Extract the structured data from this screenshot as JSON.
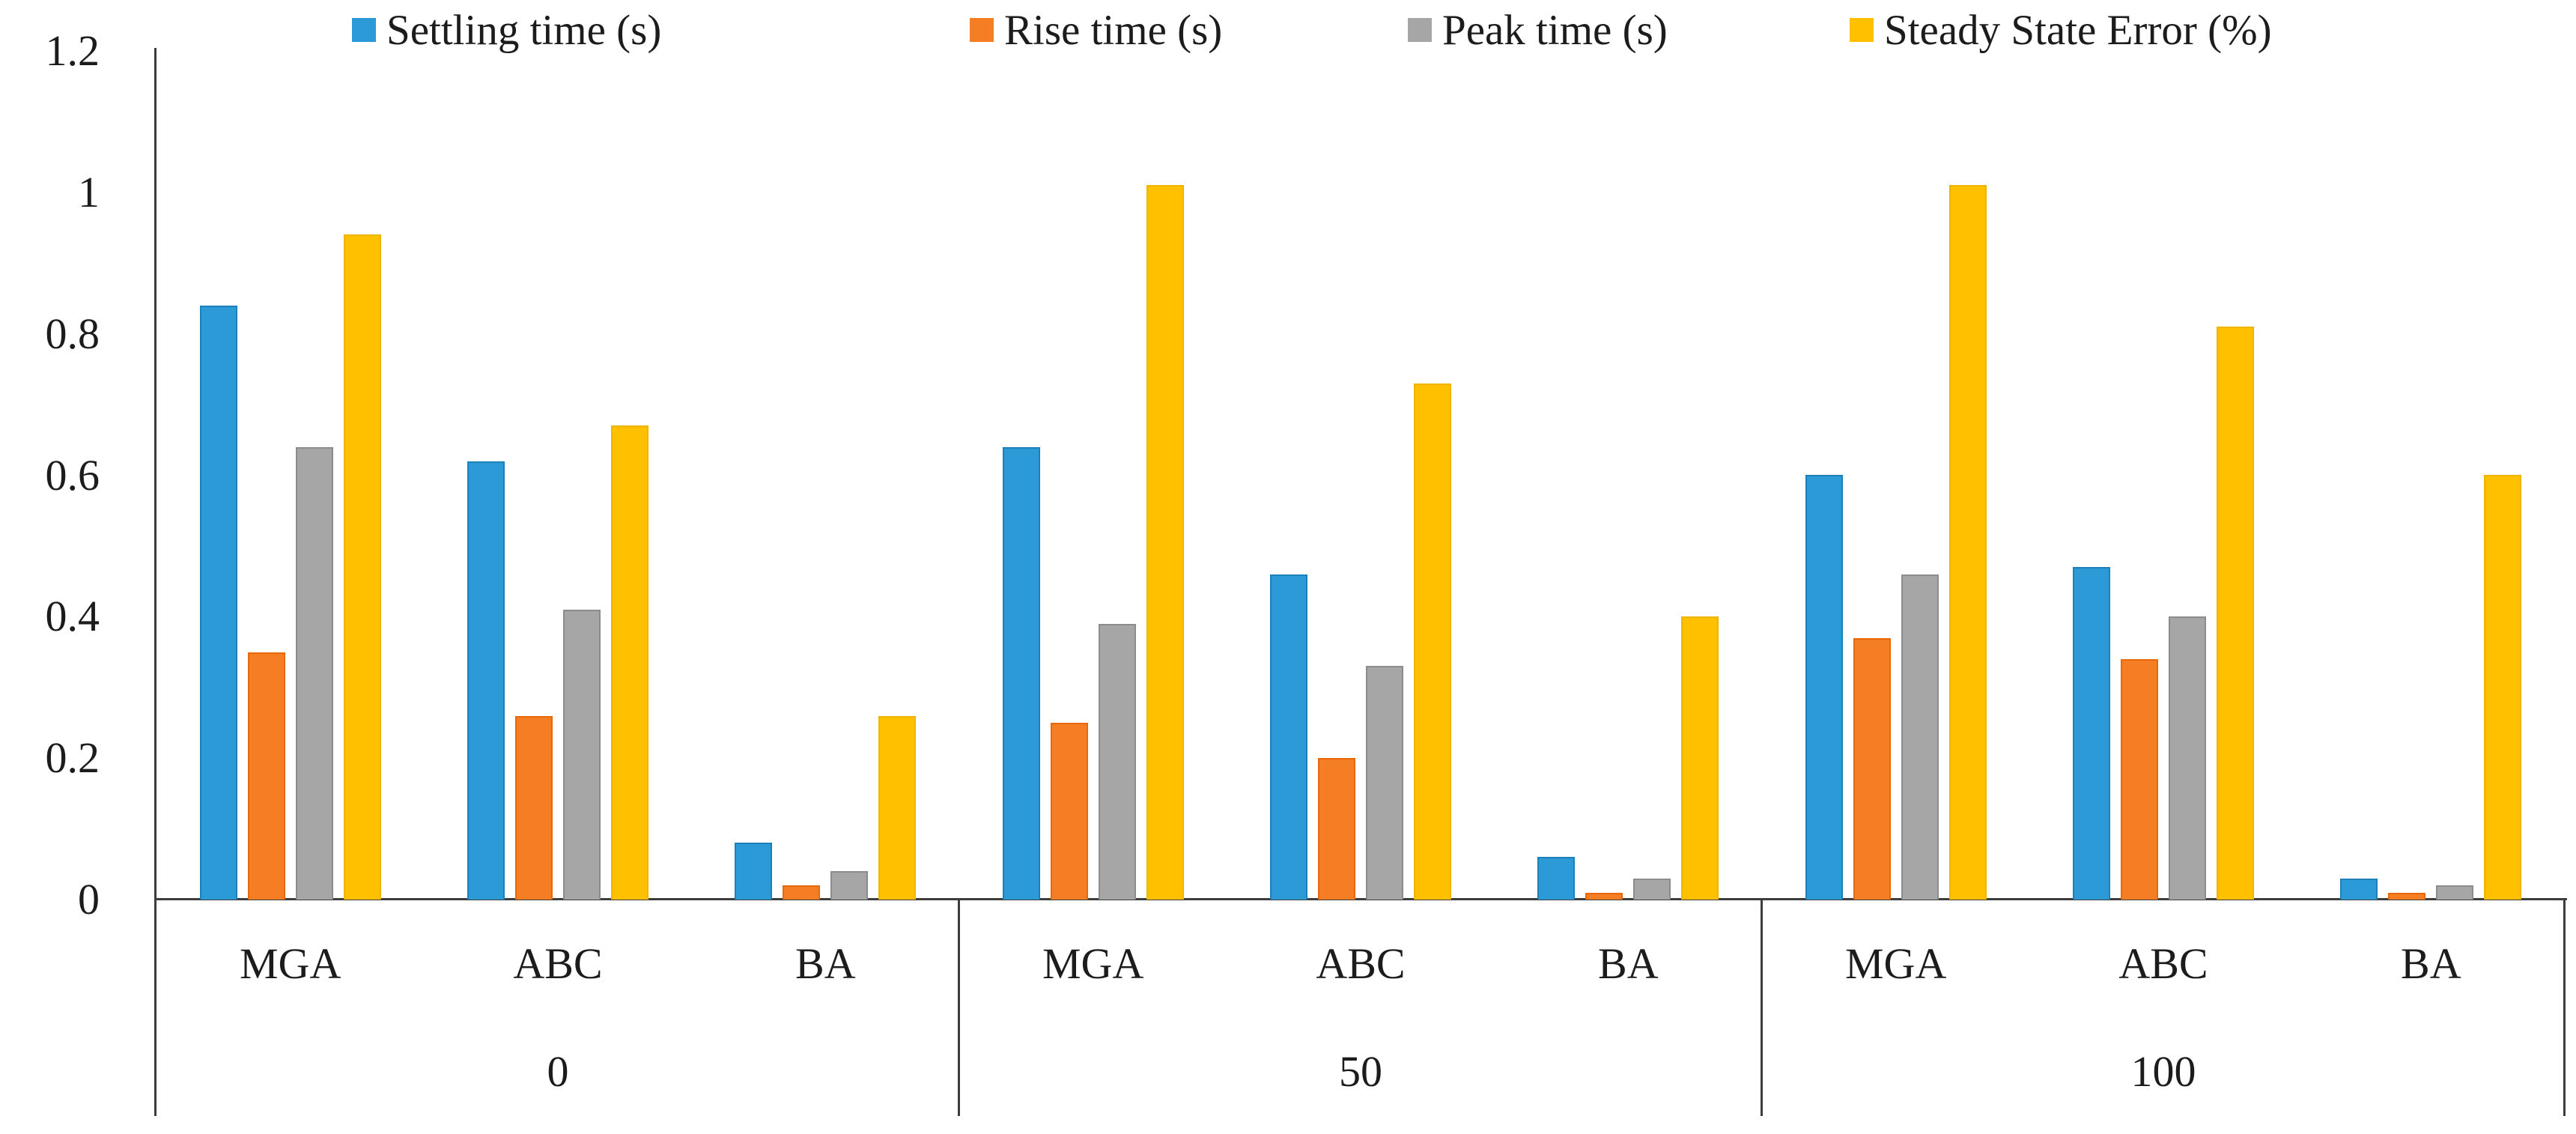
{
  "figure": {
    "background": "#ffffff",
    "axis_line_color": "#3d3d3d",
    "text_color": "#1c1c1c"
  },
  "legend": {
    "position": "top",
    "items": [
      {
        "label": "Settling time (s)",
        "color": "#2B9AD6"
      },
      {
        "label": "Rise time (s)",
        "color": "#F57E25"
      },
      {
        "label": "Peak time (s)",
        "color": "#A6A6A6"
      },
      {
        "label": "Steady State Error (%)",
        "color": "#FFC000"
      }
    ]
  },
  "chart_data": {
    "type": "bar",
    "title": "",
    "xlabel": "",
    "ylabel": "",
    "ylim": [
      0,
      1.2
    ],
    "ytick_labels": [
      "1.2",
      "1",
      "0.8",
      "0.6",
      "0.4",
      "0.2",
      "0"
    ],
    "grid": false,
    "legend_position": "top",
    "series_names": [
      "Settling time (s)",
      "Rise time (s)",
      "Peak time (s)",
      "Steady State Error (%)"
    ],
    "series_colors": [
      "#2B9AD6",
      "#F57E25",
      "#A6A6A6",
      "#FFC000"
    ],
    "series_border_colors": [
      "#1C80B9",
      "#E8690B",
      "#8C8C8C",
      "#EFB400"
    ],
    "groups": [
      {
        "label": "0",
        "clusters": [
          {
            "label": "MGA",
            "values": [
              0.84,
              0.35,
              0.64,
              0.94
            ]
          },
          {
            "label": "ABC",
            "values": [
              0.62,
              0.26,
              0.41,
              0.67
            ]
          },
          {
            "label": "BA",
            "values": [
              0.08,
              0.02,
              0.04,
              0.26
            ]
          }
        ]
      },
      {
        "label": "50",
        "clusters": [
          {
            "label": "MGA",
            "values": [
              0.64,
              0.25,
              0.39,
              1.01
            ]
          },
          {
            "label": "ABC",
            "values": [
              0.46,
              0.2,
              0.33,
              0.73
            ]
          },
          {
            "label": "BA",
            "values": [
              0.06,
              0.01,
              0.03,
              0.4
            ]
          }
        ]
      },
      {
        "label": "100",
        "clusters": [
          {
            "label": "MGA",
            "values": [
              0.6,
              0.37,
              0.46,
              1.01
            ]
          },
          {
            "label": "ABC",
            "values": [
              0.47,
              0.34,
              0.4,
              0.81
            ]
          },
          {
            "label": "BA",
            "values": [
              0.03,
              0.01,
              0.02,
              0.6
            ]
          }
        ]
      }
    ]
  }
}
